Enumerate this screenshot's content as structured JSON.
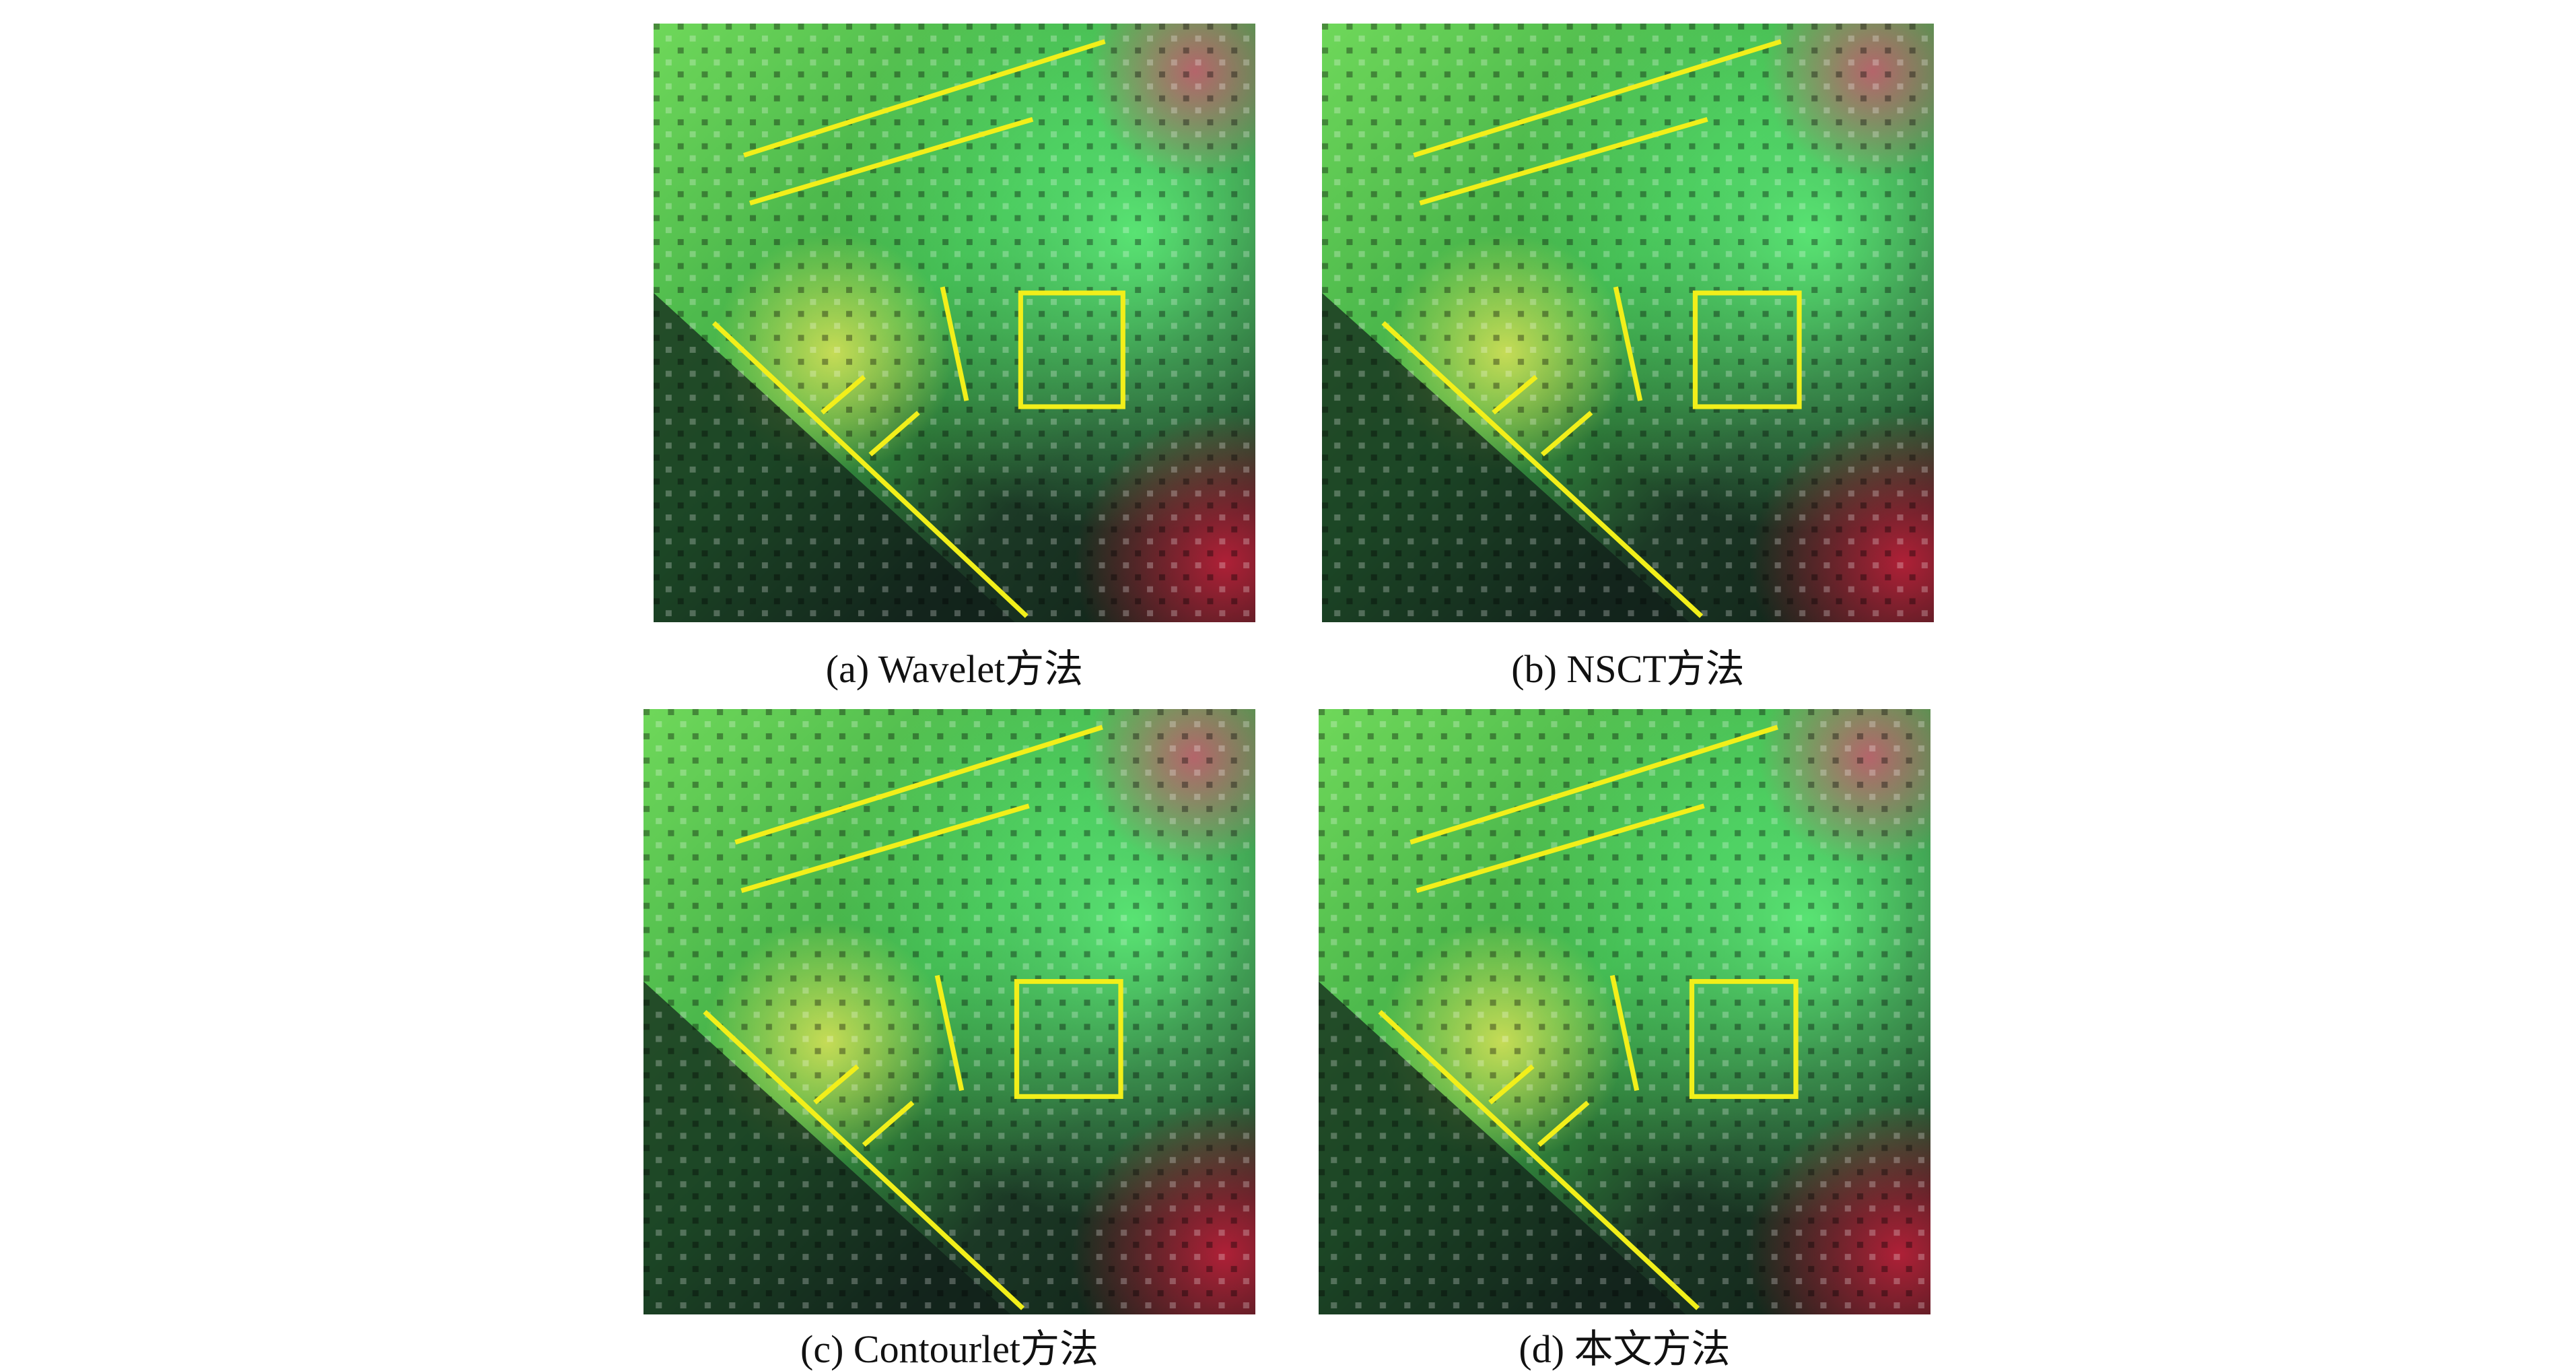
{
  "figure": {
    "panels": [
      {
        "caption": "(a) Wavelet方法"
      },
      {
        "caption": "(b) NSCT方法"
      },
      {
        "caption": "(c) Contourlet方法"
      },
      {
        "caption": "(d) 本文方法"
      }
    ]
  }
}
